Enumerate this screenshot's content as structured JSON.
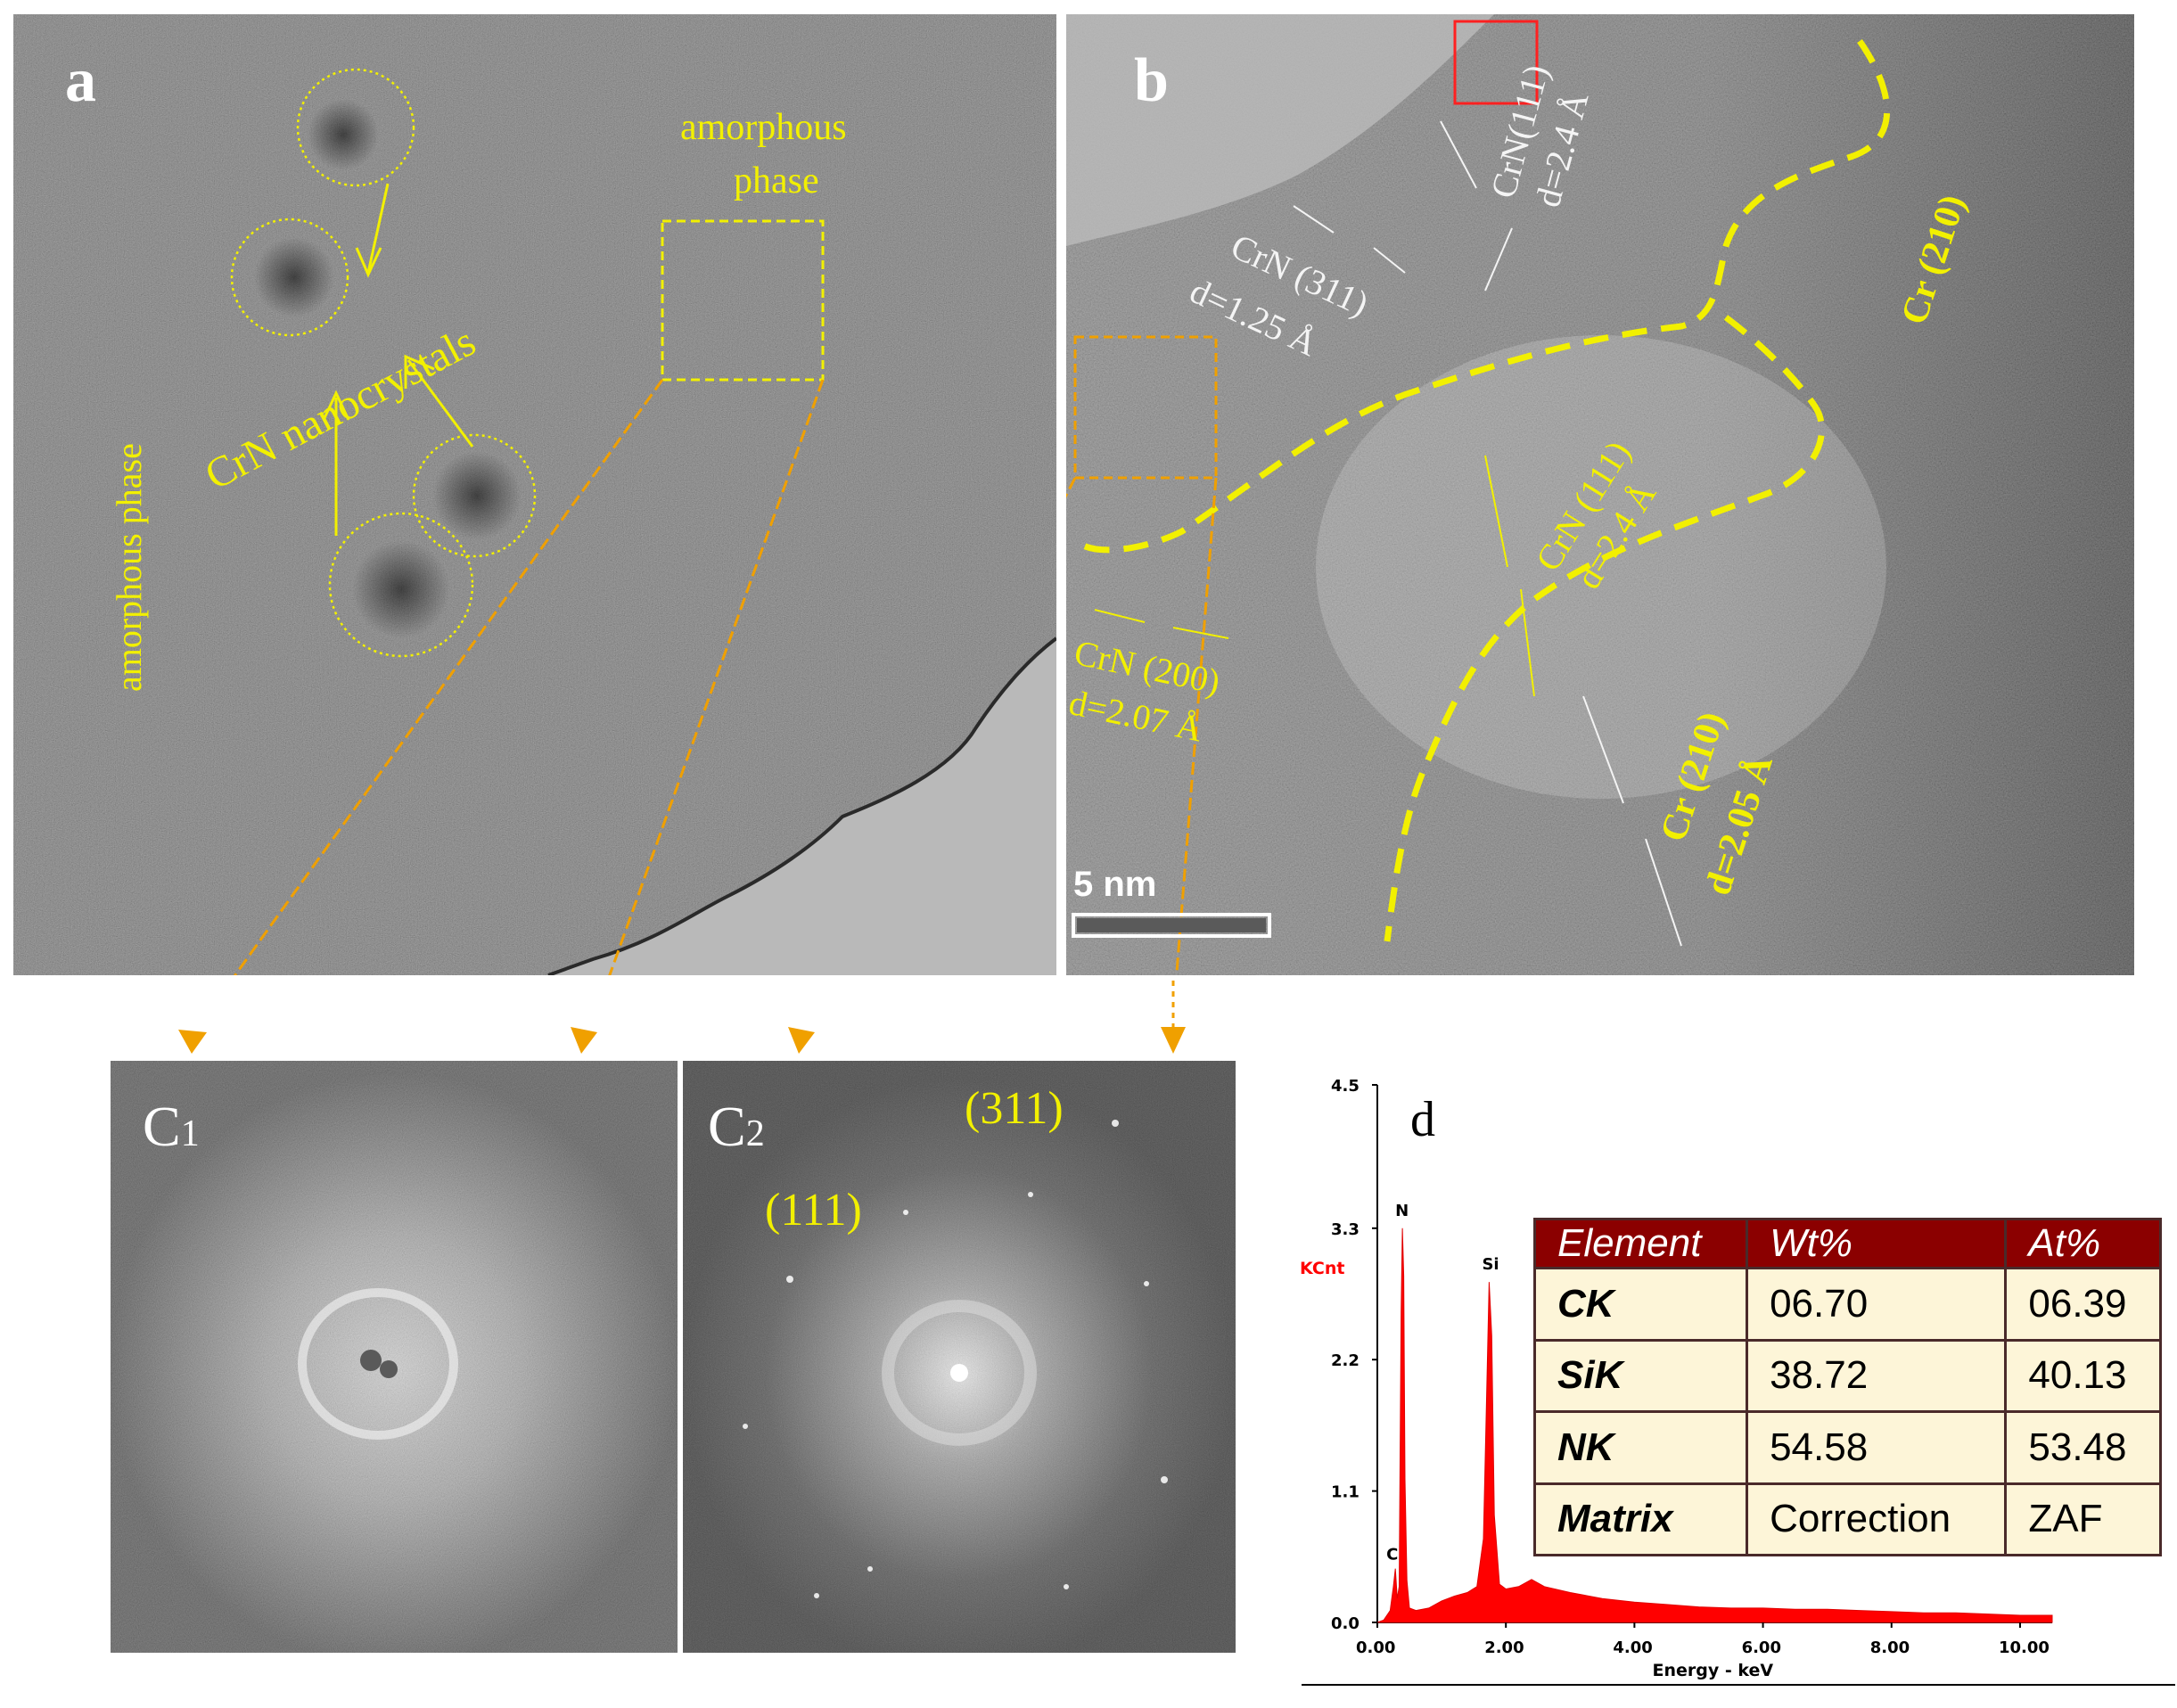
{
  "panel_a": {
    "label": "a",
    "amorphous_phase_left": "amorphous phase",
    "amorphous_phase_box_line1": "amorphous",
    "amorphous_phase_box_line2": "phase",
    "nanocrystals": "CrN nanocrystals"
  },
  "panel_b": {
    "label": "b",
    "annotations": {
      "crn_111_top_name": "CrN(111)",
      "crn_111_top_d": "d=2.4 Å",
      "crn_311_name": "CrN (311)",
      "crn_311_d": "d=1.25 Å",
      "crn_111_mid_name": "CrN (111)",
      "crn_111_mid_d": "d=2.4 Å",
      "crn_200_name": "CrN (200)",
      "crn_200_d": "d=2.07 Å",
      "cr_210_right": "Cr (210)",
      "cr_210_low_name": "Cr (210)",
      "cr_210_low_d": "d=2.05 Å"
    },
    "scale_bar": "5 nm"
  },
  "panel_c1": {
    "label_main": "C",
    "label_sub": "1"
  },
  "panel_c2": {
    "label_main": "C",
    "label_sub": "2",
    "ring_311": "(311)",
    "ring_111": "(111)"
  },
  "panel_d": {
    "label": "d",
    "ylabel": "KCnt",
    "xlabel": "Energy - keV",
    "peak_labels": {
      "N": "N",
      "Si": "Si",
      "C": "C"
    },
    "table": {
      "headers": [
        "Element",
        "Wt%",
        "At%"
      ],
      "rows": [
        [
          "CK",
          "06.70",
          "06.39"
        ],
        [
          "SiK",
          "38.72",
          "40.13"
        ],
        [
          "NK",
          "54.58",
          "53.48"
        ],
        [
          "Matrix",
          "Correction",
          "ZAF"
        ]
      ]
    }
  },
  "chart_data": {
    "type": "area",
    "xlabel": "Energy - keV",
    "ylabel": "KCnt",
    "x_ticks": [
      "0.00",
      "2.00",
      "4.00",
      "6.00",
      "8.00",
      "10.00"
    ],
    "y_ticks": [
      "0.0",
      "1.1",
      "2.2",
      "3.3",
      "4.5"
    ],
    "xlim": [
      0,
      10.5
    ],
    "ylim": [
      0,
      4.5
    ],
    "peaks": [
      {
        "name": "C",
        "x": 0.28,
        "y": 0.45
      },
      {
        "name": "N",
        "x": 0.39,
        "y": 3.3
      },
      {
        "name": "Si",
        "x": 1.74,
        "y": 2.85
      }
    ],
    "series": [
      {
        "x": [
          0,
          0.1,
          0.2,
          0.25,
          0.28,
          0.31,
          0.34,
          0.37,
          0.39,
          0.41,
          0.43,
          0.46,
          0.5,
          0.6,
          0.8,
          1.0,
          1.2,
          1.4,
          1.55,
          1.65,
          1.7,
          1.74,
          1.78,
          1.82,
          1.9,
          2.0,
          2.2,
          2.4,
          2.6,
          3.0,
          3.5,
          4.0,
          4.5,
          5.0,
          5.5,
          6.0,
          6.5,
          7.0,
          7.5,
          8.0,
          8.5,
          9.0,
          9.5,
          10.0,
          10.5
        ],
        "y": [
          0,
          0.02,
          0.1,
          0.3,
          0.45,
          0.2,
          0.3,
          2.6,
          3.3,
          2.9,
          1.2,
          0.35,
          0.12,
          0.1,
          0.12,
          0.18,
          0.22,
          0.25,
          0.3,
          0.7,
          1.9,
          2.85,
          2.4,
          0.9,
          0.32,
          0.28,
          0.3,
          0.36,
          0.3,
          0.25,
          0.2,
          0.17,
          0.15,
          0.13,
          0.12,
          0.12,
          0.11,
          0.11,
          0.1,
          0.09,
          0.08,
          0.08,
          0.07,
          0.06,
          0.06
        ]
      }
    ]
  }
}
